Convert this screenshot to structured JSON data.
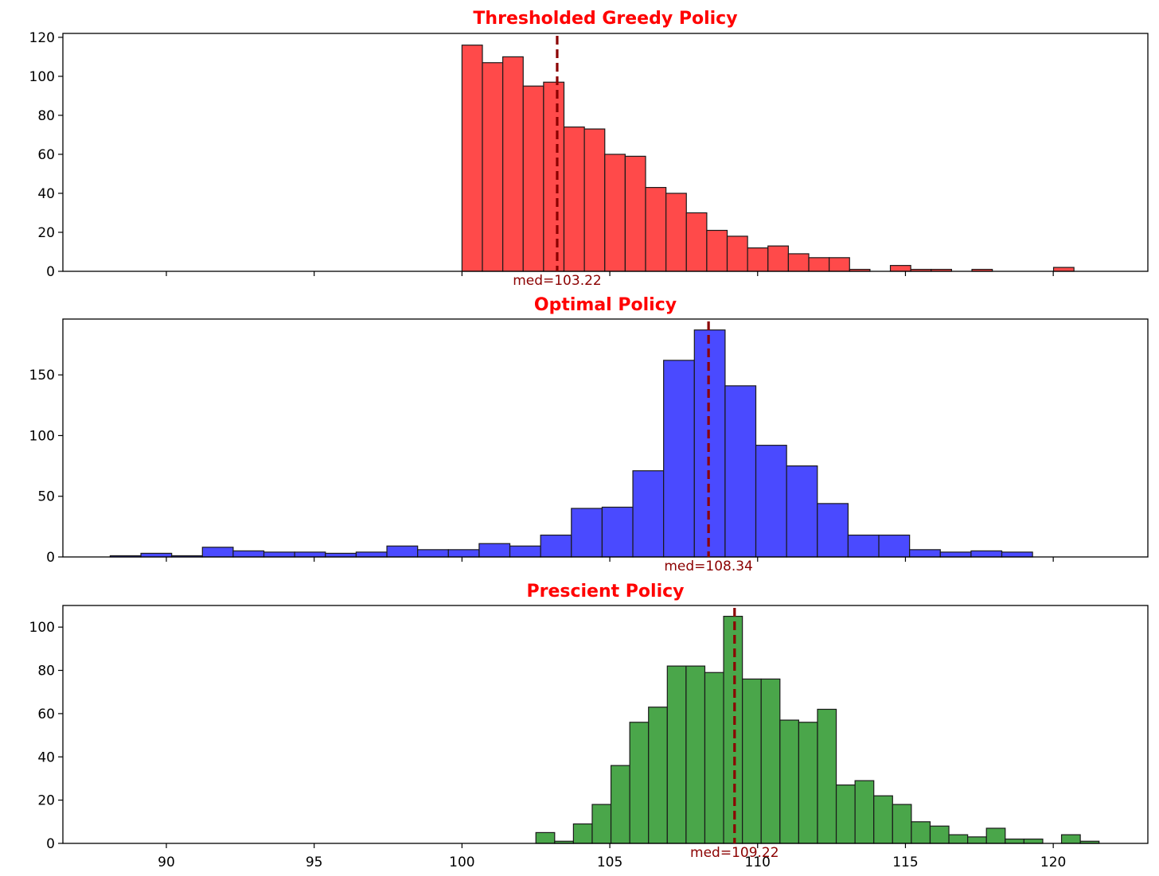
{
  "chart_data": [
    {
      "type": "bar",
      "subtype": "histogram",
      "title": "Thresholded Greedy Policy",
      "title_color": "#ff0000",
      "bar_color": "#ff4a4a",
      "edge_color": "#1a1a1a",
      "xlim": [
        86.5,
        123.2
      ],
      "ylim": [
        0,
        122
      ],
      "yticks": [
        0,
        20,
        40,
        60,
        80,
        100,
        120
      ],
      "xticks": [
        90,
        95,
        100,
        105,
        110,
        115,
        120
      ],
      "show_xtick_labels": false,
      "bin_start": 100.0,
      "bin_width": 0.69,
      "counts": [
        116,
        107,
        110,
        95,
        97,
        74,
        73,
        60,
        59,
        43,
        40,
        30,
        21,
        18,
        12,
        13,
        9,
        7,
        7,
        1,
        0,
        3,
        1,
        1,
        0,
        1,
        0,
        0,
        0,
        2
      ],
      "median": 103.22,
      "median_label": "med=103.22",
      "median_color": "#8b0000"
    },
    {
      "type": "bar",
      "subtype": "histogram",
      "title": "Optimal Policy",
      "title_color": "#ff0000",
      "bar_color": "#4a4aff",
      "edge_color": "#1a1a1a",
      "xlim": [
        86.5,
        123.2
      ],
      "ylim": [
        0,
        196
      ],
      "yticks": [
        0,
        50,
        100,
        150
      ],
      "xticks": [
        90,
        95,
        100,
        105,
        110,
        115,
        120
      ],
      "show_xtick_labels": false,
      "bin_start": 88.1,
      "bin_width": 1.04,
      "counts": [
        1,
        3,
        1,
        8,
        5,
        4,
        4,
        3,
        4,
        9,
        6,
        6,
        11,
        9,
        18,
        40,
        41,
        71,
        162,
        187,
        141,
        92,
        75,
        44,
        18,
        18,
        6,
        4,
        5,
        4
      ],
      "median": 108.34,
      "median_label": "med=108.34",
      "median_color": "#8b0000"
    },
    {
      "type": "bar",
      "subtype": "histogram",
      "title": "Prescient Policy",
      "title_color": "#ff0000",
      "bar_color": "#4aa64a",
      "edge_color": "#1a1a1a",
      "xlim": [
        86.5,
        123.2
      ],
      "ylim": [
        0,
        110
      ],
      "yticks": [
        0,
        20,
        40,
        60,
        80,
        100
      ],
      "xticks": [
        90,
        95,
        100,
        105,
        110,
        115,
        120
      ],
      "xtick_labels": [
        "90",
        "95",
        "100",
        "105",
        "110",
        "115",
        "120"
      ],
      "show_xtick_labels": true,
      "bin_start": 102.5,
      "bin_width": 0.635,
      "counts": [
        5,
        1,
        9,
        18,
        36,
        56,
        63,
        82,
        82,
        79,
        105,
        76,
        76,
        57,
        56,
        62,
        27,
        29,
        22,
        18,
        10,
        8,
        4,
        3,
        7,
        2,
        2,
        0,
        4,
        1
      ],
      "median": 109.22,
      "median_label": "med=109.22",
      "median_color": "#8b0000"
    }
  ]
}
